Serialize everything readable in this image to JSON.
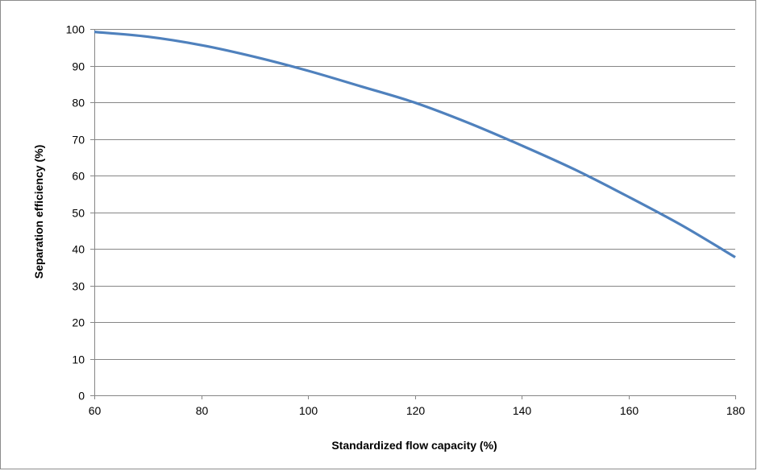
{
  "chart_data": {
    "type": "line",
    "title": "",
    "xlabel": "Standardized flow capacity (%)",
    "ylabel": "Separation efficiency (%)",
    "xlim": [
      60,
      180
    ],
    "ylim": [
      0,
      100
    ],
    "xticks": [
      60,
      80,
      100,
      120,
      140,
      160,
      180
    ],
    "yticks": [
      0,
      10,
      20,
      30,
      40,
      50,
      60,
      70,
      80,
      90,
      100
    ],
    "grid": "horizontal",
    "legend": "none",
    "series": [
      {
        "color": "#4f81bd",
        "x": [
          60,
          70,
          80,
          90,
          100,
          110,
          120,
          130,
          140,
          150,
          160,
          170,
          180
        ],
        "y": [
          99.2,
          97.9,
          95.6,
          92.4,
          88.6,
          84.3,
          79.9,
          74.4,
          68.2,
          61.6,
          54.2,
          46.4,
          37.7
        ]
      }
    ]
  }
}
